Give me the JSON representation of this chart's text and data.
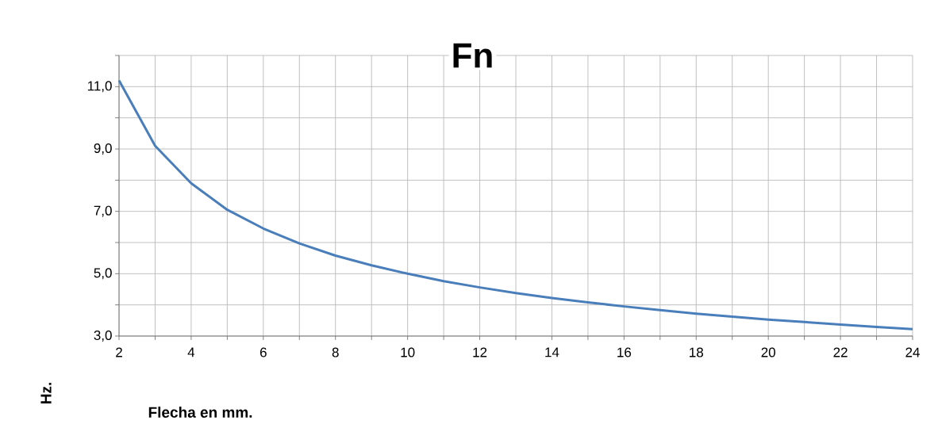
{
  "chart_data": {
    "type": "line",
    "title": "Fn",
    "xlabel": "Flecha en mm.",
    "ylabel": "Hz.",
    "x": [
      2,
      3,
      4,
      5,
      6,
      7,
      8,
      9,
      10,
      11,
      12,
      13,
      14,
      15,
      16,
      17,
      18,
      19,
      20,
      21,
      22,
      23,
      24
    ],
    "series": [
      {
        "color": "#4a7ebb",
        "values": [
          11.2,
          9.1,
          7.9,
          7.05,
          6.45,
          5.97,
          5.58,
          5.27,
          5.0,
          4.76,
          4.56,
          4.38,
          4.22,
          4.08,
          3.95,
          3.83,
          3.72,
          3.62,
          3.53,
          3.45,
          3.37,
          3.29,
          3.22
        ]
      }
    ],
    "xlim": [
      2,
      24
    ],
    "ylim": [
      3,
      12
    ],
    "xticks": [
      2,
      {
        "value": 3,
        "label": null
      },
      4,
      {
        "value": 5,
        "label": null
      },
      6,
      {
        "value": 7,
        "label": null
      },
      8,
      {
        "value": 9,
        "label": null
      },
      10,
      {
        "value": 11,
        "label": null
      },
      12,
      {
        "value": 13,
        "label": null
      },
      14,
      {
        "value": 15,
        "label": null
      },
      16,
      {
        "value": 17,
        "label": null
      },
      18,
      {
        "value": 19,
        "label": null
      },
      20,
      {
        "value": 21,
        "label": null
      },
      22,
      {
        "value": 23,
        "label": null
      },
      24
    ],
    "yticks": [
      {
        "value": 3,
        "label": "3,0"
      },
      {
        "value": 4,
        "label": null
      },
      {
        "value": 5,
        "label": "5,0"
      },
      {
        "value": 6,
        "label": null
      },
      {
        "value": 7,
        "label": "7,0"
      },
      {
        "value": 8,
        "label": null
      },
      {
        "value": 9,
        "label": "9,0"
      },
      {
        "value": 10,
        "label": null
      },
      {
        "value": 11,
        "label": "11,0"
      },
      {
        "value": 12,
        "label": null
      }
    ],
    "grid": true,
    "marker": "none",
    "line_style": "solid"
  }
}
